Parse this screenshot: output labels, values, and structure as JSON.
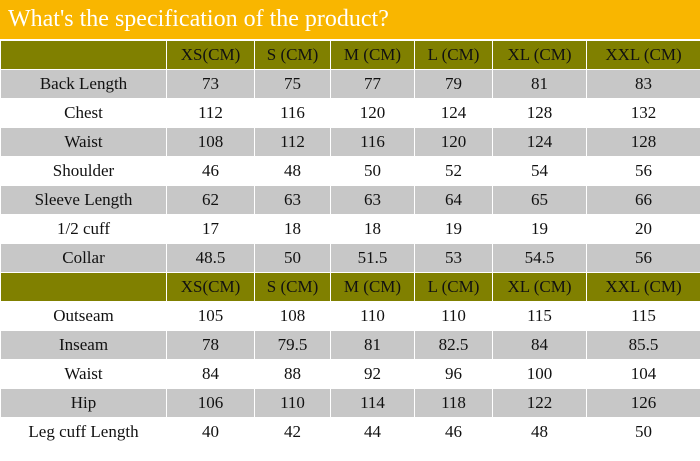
{
  "title": "What's the specification of the product?",
  "colors": {
    "title_bg": "#f9b600",
    "header_bg": "#808000",
    "gray_row": "#c7c7c7",
    "white_row": "#ffffff"
  },
  "top_table": {
    "headers": [
      "",
      "XS(CM)",
      "S (CM)",
      "M (CM)",
      "L (CM)",
      "XL (CM)",
      "XXL (CM)"
    ],
    "rows": [
      {
        "label": "Back Length",
        "values": [
          "73",
          "75",
          "77",
          "79",
          "81",
          "83"
        ]
      },
      {
        "label": "Chest",
        "values": [
          "112",
          "116",
          "120",
          "124",
          "128",
          "132"
        ]
      },
      {
        "label": "Waist",
        "values": [
          "108",
          "112",
          "116",
          "120",
          "124",
          "128"
        ]
      },
      {
        "label": "Shoulder",
        "values": [
          "46",
          "48",
          "50",
          "52",
          "54",
          "56"
        ]
      },
      {
        "label": "Sleeve Length",
        "values": [
          "62",
          "63",
          "63",
          "64",
          "65",
          "66"
        ]
      },
      {
        "label": "1/2 cuff",
        "values": [
          "17",
          "18",
          "18",
          "19",
          "19",
          "20"
        ]
      },
      {
        "label": "Collar",
        "values": [
          "48.5",
          "50",
          "51.5",
          "53",
          "54.5",
          "56"
        ]
      }
    ]
  },
  "bottom_table": {
    "headers": [
      "",
      "XS(CM)",
      "S (CM)",
      "M (CM)",
      "L (CM)",
      "XL (CM)",
      "XXL (CM)"
    ],
    "rows": [
      {
        "label": "Outseam",
        "values": [
          "105",
          "108",
          "110",
          "110",
          "115",
          "115"
        ]
      },
      {
        "label": "Inseam",
        "values": [
          "78",
          "79.5",
          "81",
          "82.5",
          "84",
          "85.5"
        ]
      },
      {
        "label": "Waist",
        "values": [
          "84",
          "88",
          "92",
          "96",
          "100",
          "104"
        ]
      },
      {
        "label": "Hip",
        "values": [
          "106",
          "110",
          "114",
          "118",
          "122",
          "126"
        ]
      },
      {
        "label": "Leg cuff Length",
        "values": [
          "40",
          "42",
          "44",
          "46",
          "48",
          "50"
        ]
      }
    ]
  }
}
